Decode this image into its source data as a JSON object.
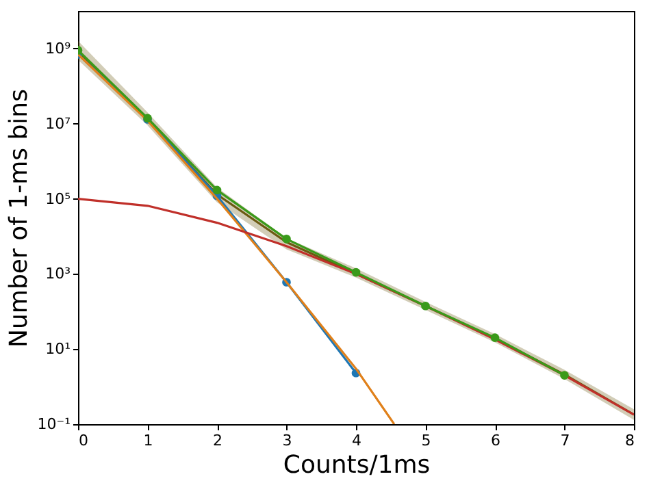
{
  "chart_data": {
    "type": "line",
    "xlabel": "Counts/1ms",
    "ylabel": "Number of 1-ms bins",
    "log": "y",
    "grid": false,
    "line_style": "solid",
    "xlim": [
      0,
      8
    ],
    "xticks": [
      0,
      1,
      2,
      3,
      4,
      5,
      6,
      7,
      8
    ],
    "ylim": [
      0.1,
      10000000000
    ],
    "yticks": [
      {
        "value": 0.1,
        "label": "10⁻¹"
      },
      {
        "value": 10,
        "label": "10¹"
      },
      {
        "value": 1000,
        "label": "10³"
      },
      {
        "value": 100000,
        "label": "10⁵"
      },
      {
        "value": 10000000,
        "label": "10⁷"
      },
      {
        "value": 1000000000,
        "label": "10⁹"
      }
    ],
    "series": [
      {
        "marker": "none",
        "color": "#6b5a10",
        "x": [
          0,
          1,
          2,
          3,
          4,
          5,
          6,
          7,
          8
        ],
        "values": [
          800000000,
          13000000,
          130000,
          7000,
          1000,
          140,
          19,
          2.1,
          0.18
        ],
        "lower": [
          500000000,
          9000000,
          80000,
          4500,
          800,
          110,
          15,
          1.6,
          0.13
        ],
        "upper": [
          1600000000,
          20000000,
          200000,
          9000,
          1400,
          180,
          25,
          2.8,
          0.25
        ]
      },
      {
        "marker": "circle",
        "color": "#1f77b4",
        "x": [
          0,
          1,
          2,
          3,
          4
        ],
        "values": [
          700000000,
          13000000,
          120000,
          600,
          2.3
        ]
      },
      {
        "marker": "none",
        "color": "#e0801a",
        "x": [
          0,
          1,
          2,
          3,
          4,
          4.55
        ],
        "values": [
          700000000,
          12000000,
          100000,
          600,
          3,
          0.1
        ]
      },
      {
        "marker": "none",
        "color": "#c0302a",
        "x": [
          0,
          1,
          2,
          3,
          4,
          5,
          6,
          7,
          8
        ],
        "values": [
          100000,
          65000,
          23000,
          5500,
          1000,
          140,
          18,
          2,
          0.18
        ]
      },
      {
        "marker": "circle",
        "color": "#3a9a1a",
        "x": [
          0,
          1,
          2,
          3,
          4,
          5,
          6,
          7
        ],
        "values": [
          900000000,
          14000000,
          170000,
          8500,
          1100,
          140,
          20,
          2
        ]
      }
    ]
  }
}
